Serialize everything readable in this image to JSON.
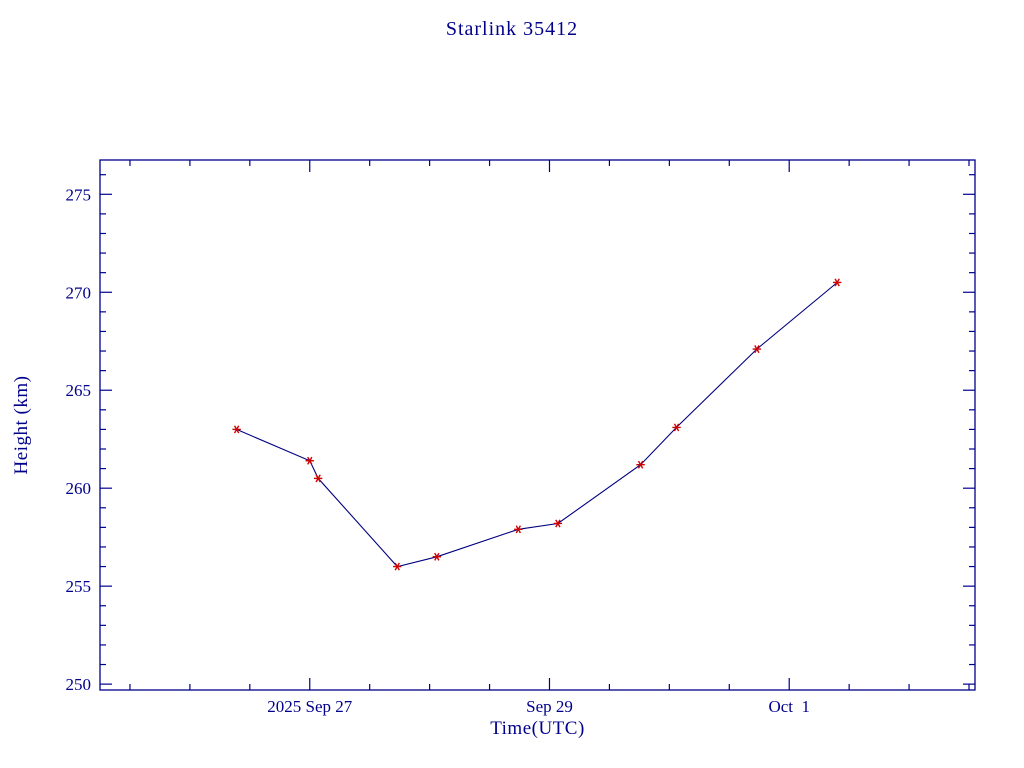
{
  "chart_data": {
    "type": "line",
    "title": "Starlink 35412",
    "xlabel": "Time(UTC)",
    "ylabel": "Height (km)",
    "axis_color": "#00008b",
    "line_color": "#000080",
    "marker_color": "#cc0000",
    "marker": "asterisk",
    "xlim": [
      25.25,
      32.55
    ],
    "ylim": [
      249.7,
      276.75
    ],
    "x_ticks": [
      {
        "value": 27,
        "label": "2025 Sep 27"
      },
      {
        "value": 29,
        "label": "Sep 29"
      },
      {
        "value": 31,
        "label": "Oct  1"
      }
    ],
    "x_minor_step": 0.5,
    "y_ticks": [
      {
        "value": 250,
        "label": "250"
      },
      {
        "value": 255,
        "label": "255"
      },
      {
        "value": 260,
        "label": "260"
      },
      {
        "value": 265,
        "label": "265"
      },
      {
        "value": 270,
        "label": "270"
      },
      {
        "value": 275,
        "label": "275"
      }
    ],
    "y_minor_step": 1,
    "points": [
      {
        "x": 26.39,
        "y": 263.0
      },
      {
        "x": 27.0,
        "y": 261.4
      },
      {
        "x": 27.07,
        "y": 260.5
      },
      {
        "x": 27.73,
        "y": 256.0
      },
      {
        "x": 28.06,
        "y": 256.5
      },
      {
        "x": 28.74,
        "y": 257.9
      },
      {
        "x": 29.07,
        "y": 258.2
      },
      {
        "x": 29.76,
        "y": 261.2
      },
      {
        "x": 30.06,
        "y": 263.1
      },
      {
        "x": 30.73,
        "y": 267.1
      },
      {
        "x": 31.4,
        "y": 270.5
      }
    ]
  }
}
